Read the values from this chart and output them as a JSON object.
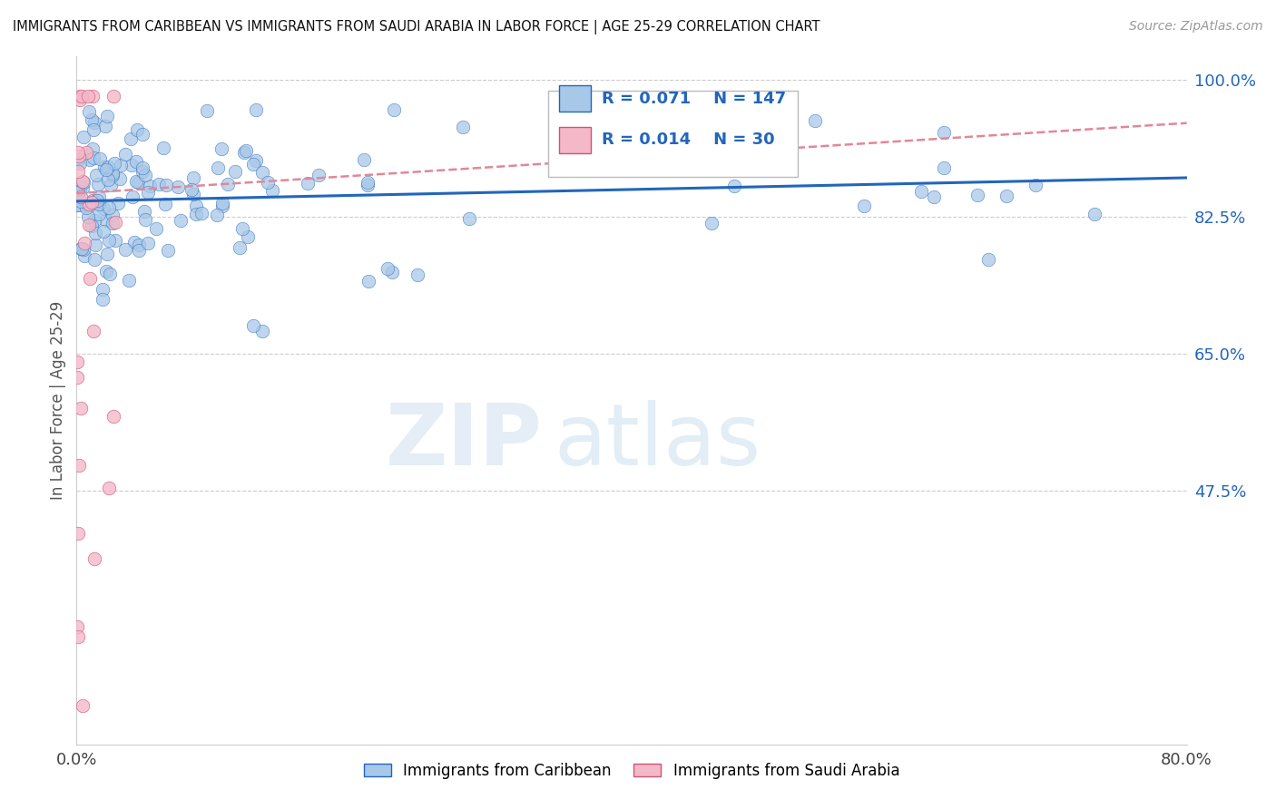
{
  "title": "IMMIGRANTS FROM CARIBBEAN VS IMMIGRANTS FROM SAUDI ARABIA IN LABOR FORCE | AGE 25-29 CORRELATION CHART",
  "source": "Source: ZipAtlas.com",
  "ylabel": "In Labor Force | Age 25-29",
  "xmin": 0.0,
  "xmax": 0.8,
  "ymin": 0.15,
  "ymax": 1.03,
  "ytick_labels": [
    "100.0%",
    "82.5%",
    "65.0%",
    "47.5%"
  ],
  "ytick_values": [
    1.0,
    0.825,
    0.65,
    0.475
  ],
  "xtick_labels": [
    "0.0%",
    "80.0%"
  ],
  "xtick_values": [
    0.0,
    0.8
  ],
  "legend_r1": "0.071",
  "legend_n1": "147",
  "legend_r2": "0.014",
  "legend_n2": "30",
  "color_caribbean": "#a8c8e8",
  "color_saudi": "#f4b8c8",
  "trend_caribbean": "#2266bb",
  "trend_saudi": "#e08898",
  "legend_label1": "Immigrants from Caribbean",
  "legend_label2": "Immigrants from Saudi Arabia",
  "carib_trend_x": [
    0.0,
    0.8
  ],
  "carib_trend_y": [
    0.845,
    0.875
  ],
  "saudi_trend_x": [
    0.0,
    0.08
  ],
  "saudi_trend_y": [
    0.855,
    0.895
  ]
}
